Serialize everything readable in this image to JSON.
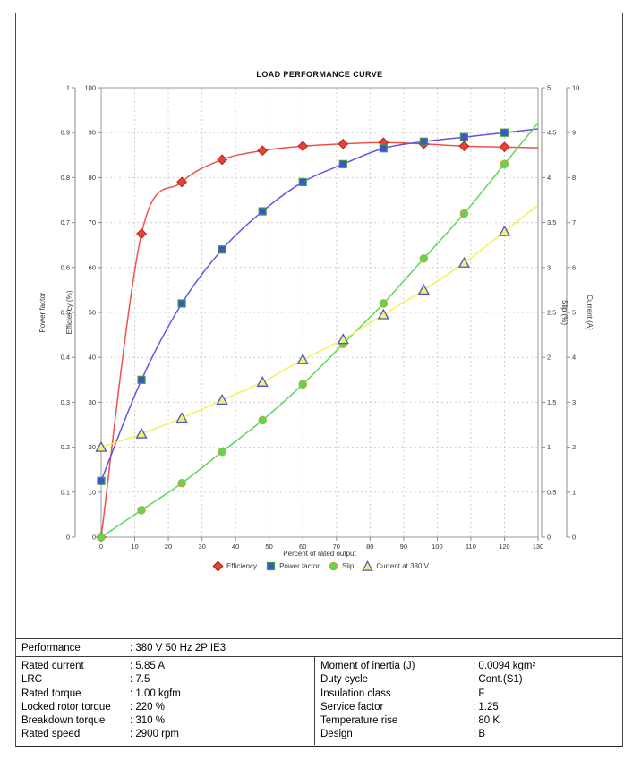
{
  "chart_data": {
    "type": "line",
    "title": "LOAD PERFORMANCE CURVE",
    "x": [
      0,
      12,
      24,
      36,
      48,
      60,
      72,
      84,
      96,
      108,
      120
    ],
    "series": [
      {
        "name": "Efficiency",
        "axis": "efficiency",
        "marker": "diamond",
        "line_color": "#f05149",
        "marker_fill": "#e8413a",
        "marker_stroke": "#b02318",
        "values": [
          0,
          67.5,
          79,
          84,
          86,
          87,
          87.5,
          87.8,
          87.5,
          87,
          86.8
        ]
      },
      {
        "name": "Power factor",
        "axis": "power_factor",
        "marker": "square",
        "line_color": "#5a5ae0",
        "marker_fill": "#3d52d5",
        "marker_stroke": "#3f9e3f",
        "values": [
          0.125,
          0.35,
          0.52,
          0.64,
          0.725,
          0.79,
          0.83,
          0.865,
          0.88,
          0.89,
          0.9
        ]
      },
      {
        "name": "Slip",
        "axis": "slip",
        "marker": "circle",
        "line_color": "#58d858",
        "marker_fill": "#58d858",
        "marker_stroke": "#c9a43a",
        "values": [
          0,
          0.3,
          0.6,
          0.95,
          1.3,
          1.7,
          2.15,
          2.6,
          3.1,
          3.6,
          4.15
        ]
      },
      {
        "name": "Current at 380 V",
        "axis": "current",
        "marker": "triangle",
        "line_color": "#f6ef55",
        "marker_fill": "#f6f068",
        "marker_stroke": "#4d55d8",
        "values": [
          2.0,
          2.3,
          2.65,
          3.05,
          3.45,
          3.95,
          4.4,
          4.95,
          5.5,
          6.1,
          6.8
        ]
      }
    ],
    "axes": {
      "x": {
        "label": "Percent of rated output",
        "min": 0,
        "max": 130,
        "step": 10
      },
      "power_factor": {
        "label": "Power factor",
        "min": 0,
        "max": 1,
        "step": 0.1
      },
      "efficiency": {
        "label": "Efficiency (%)",
        "min": 0,
        "max": 100,
        "step": 10
      },
      "slip": {
        "label": "Slip (%)",
        "min": 0,
        "max": 5,
        "step": 0.5
      },
      "current": {
        "label": "Current (A)",
        "min": 0,
        "max": 10,
        "step": 1
      }
    },
    "grid": true,
    "legend_position": "bottom"
  },
  "table": {
    "performance": {
      "label": "Performance",
      "value": ": 380 V 50 Hz 2P IE3"
    },
    "left": [
      {
        "label": "Rated current",
        "value": ": 5.85 A"
      },
      {
        "label": "LRC",
        "value": ": 7.5"
      },
      {
        "label": "Rated torque",
        "value": ": 1.00 kgfm"
      },
      {
        "label": "Locked rotor torque",
        "value": ": 220 %"
      },
      {
        "label": "Breakdown torque",
        "value": ": 310 %"
      },
      {
        "label": "Rated speed",
        "value": ": 2900 rpm"
      }
    ],
    "right": [
      {
        "label": "Moment of inertia (J)",
        "value": ": 0.0094 kgm²"
      },
      {
        "label": "Duty cycle",
        "value": ": Cont.(S1)"
      },
      {
        "label": "Insulation class",
        "value": ": F"
      },
      {
        "label": "Service factor",
        "value": ": 1.25"
      },
      {
        "label": "Temperature rise",
        "value": ": 80 K"
      },
      {
        "label": "Design",
        "value": ": B"
      }
    ]
  }
}
